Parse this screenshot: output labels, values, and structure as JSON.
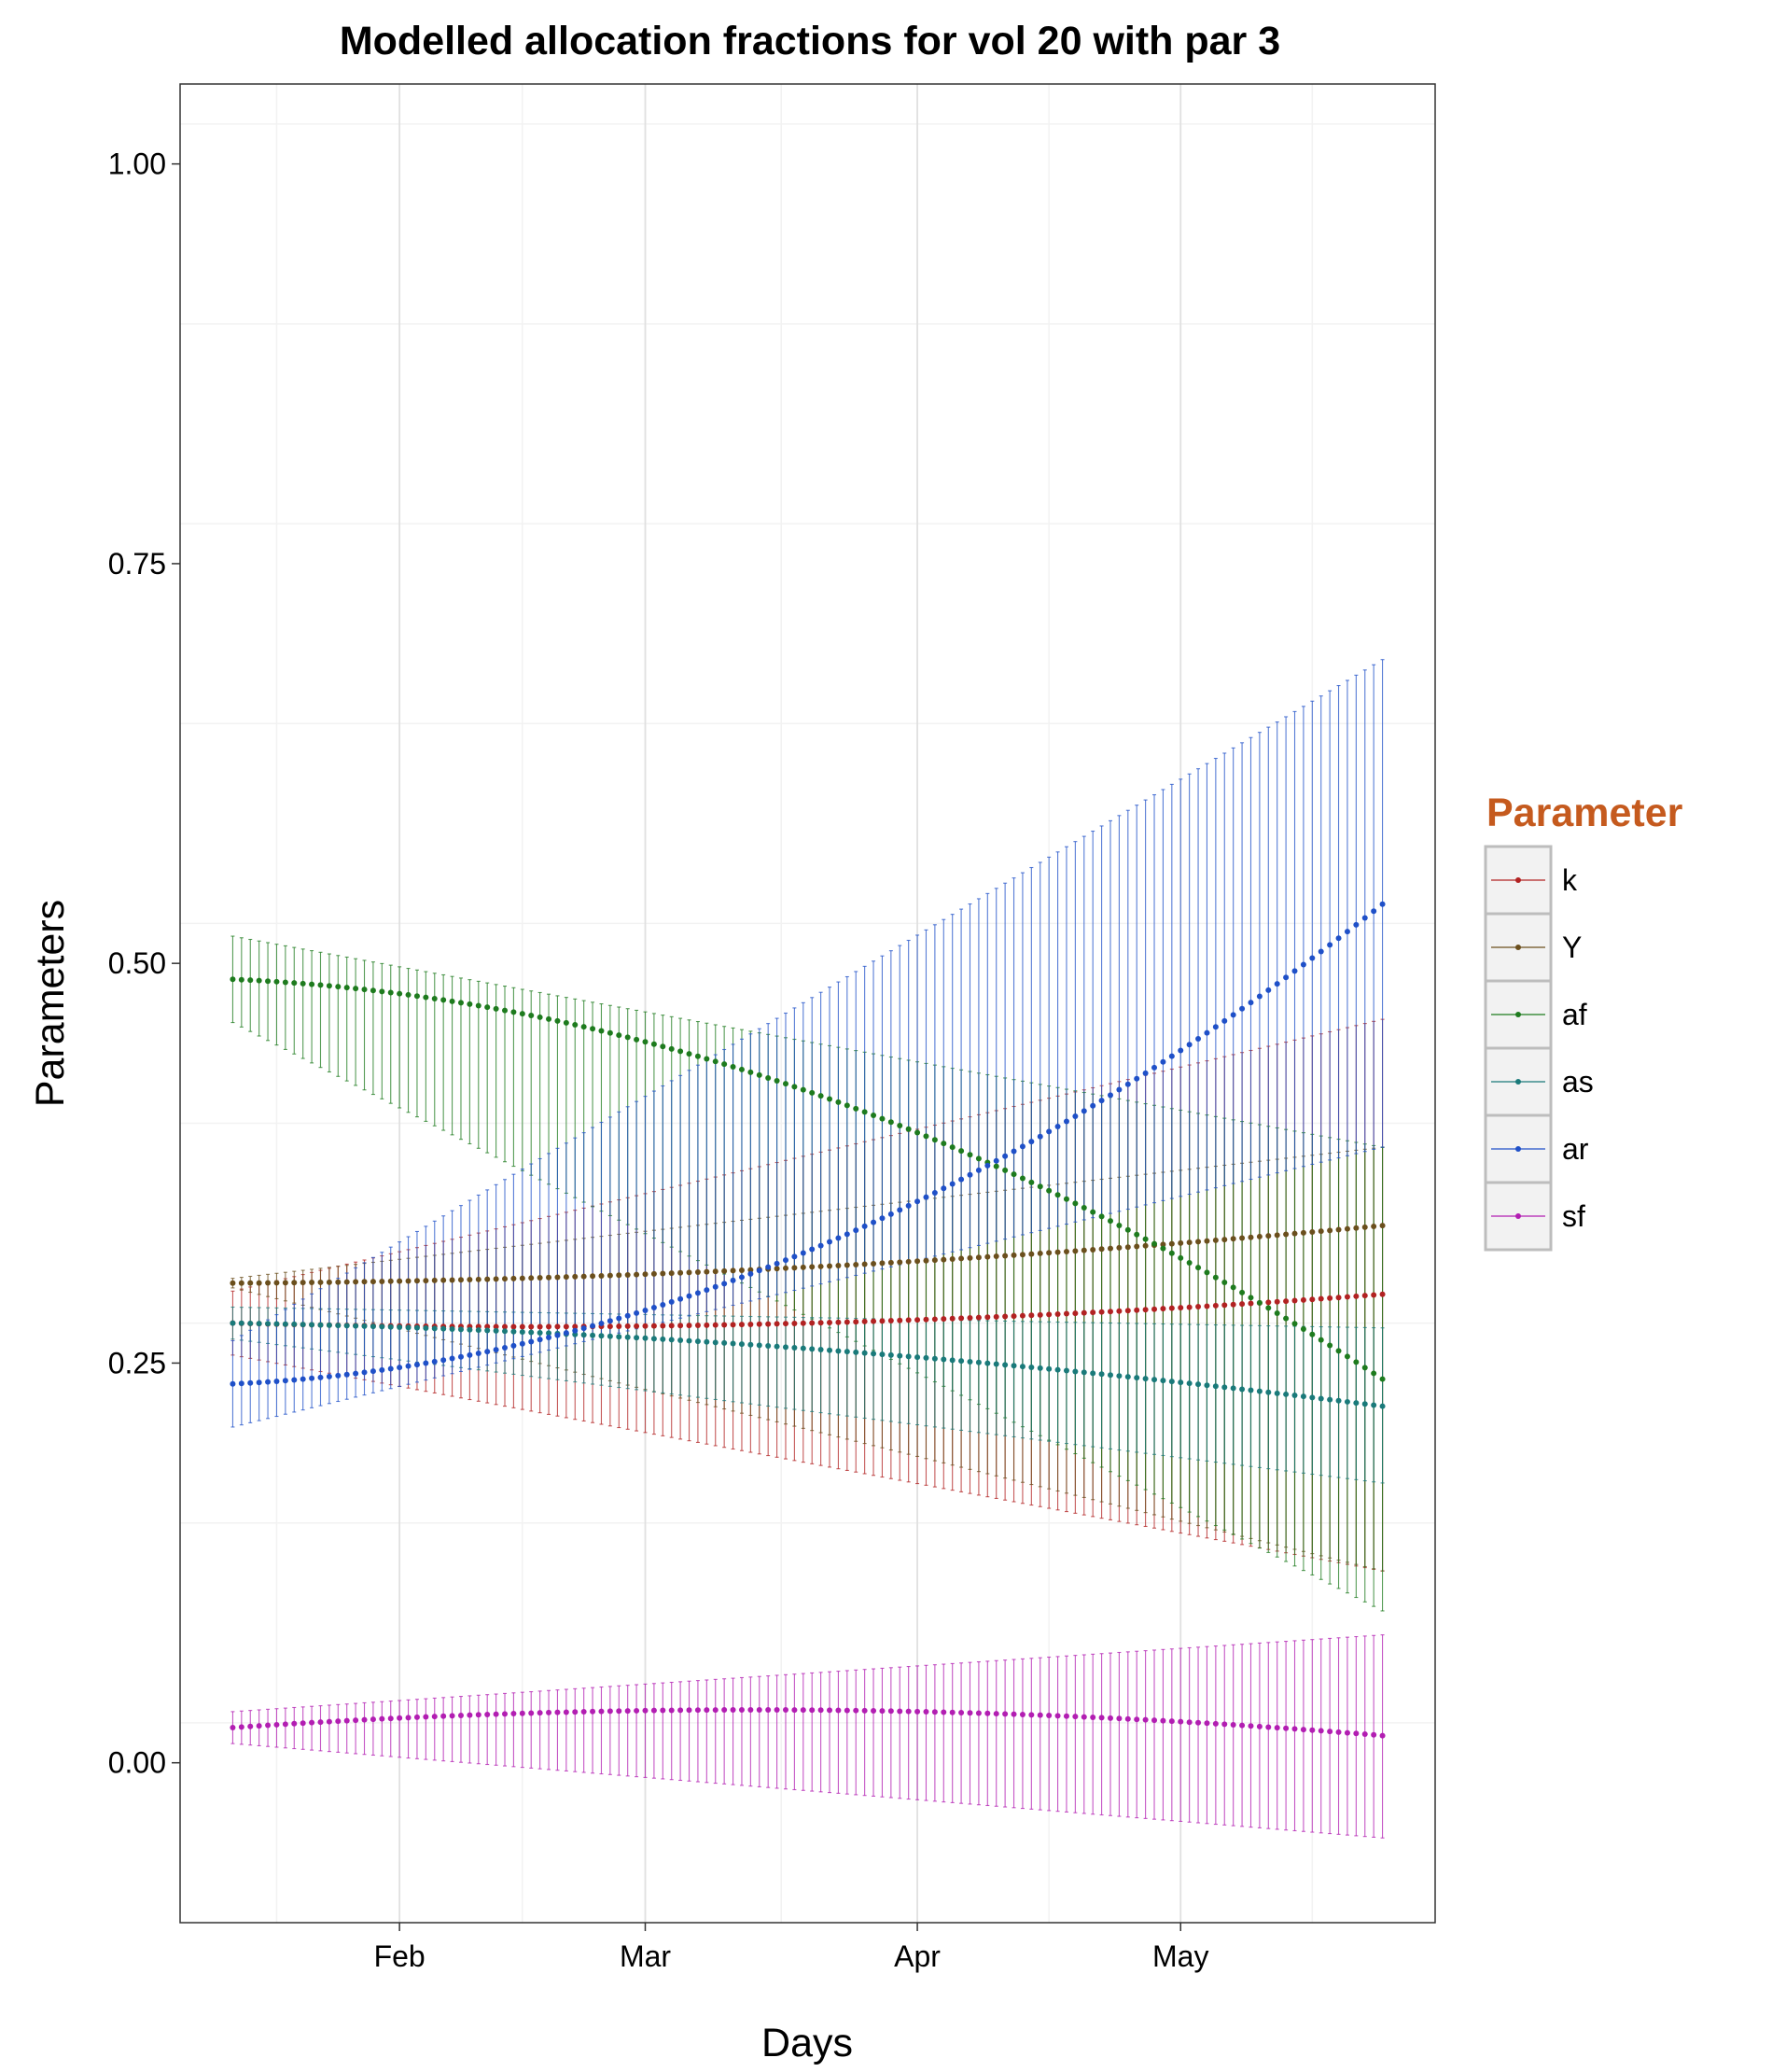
{
  "chart_data": {
    "type": "line",
    "title": "Modelled allocation fractions for vol 20 with par 3",
    "xlabel": "Days",
    "ylabel": "Parameters",
    "x_range": [
      "2015-01-13",
      "2015-05-24"
    ],
    "xlim": [
      "2015-01-07",
      "2015-05-30"
    ],
    "ylim": [
      -0.1,
      1.05
    ],
    "x_ticks": [
      {
        "date": "2015-02-01",
        "label": "Feb"
      },
      {
        "date": "2015-03-01",
        "label": "Mar"
      },
      {
        "date": "2015-04-01",
        "label": "Apr"
      },
      {
        "date": "2015-05-01",
        "label": "May"
      }
    ],
    "y_ticks": [
      {
        "value": 0.0,
        "label": "0.00"
      },
      {
        "value": 0.25,
        "label": "0.25"
      },
      {
        "value": 0.5,
        "label": "0.50"
      },
      {
        "value": 0.75,
        "label": "0.75"
      },
      {
        "value": 1.0,
        "label": "1.00"
      }
    ],
    "grid": true,
    "legend": {
      "title": "Parameter",
      "title_color": "#C55A1E",
      "placement": "right"
    },
    "series": [
      {
        "name": "k",
        "color": "#B22222",
        "start": 0.275,
        "mid": 0.275,
        "end": 0.293,
        "lo_start": 0.255,
        "lo_end": 0.12,
        "hi_start": 0.295,
        "hi_end": 0.465
      },
      {
        "name": "Y",
        "color": "#6B4F1D",
        "start": 0.3,
        "mid": 0.31,
        "end": 0.336,
        "lo_start": 0.297,
        "lo_end": 0.12,
        "hi_start": 0.303,
        "hi_end": 0.385
      },
      {
        "name": "af",
        "color": "#1E7B1E",
        "start": 0.49,
        "mid": 0.42,
        "end": 0.24,
        "lo_start": 0.463,
        "lo_end": 0.095,
        "hi_start": 0.517,
        "hi_end": 0.385
      },
      {
        "name": "as",
        "color": "#1A7A7A",
        "start": 0.275,
        "mid": 0.259,
        "end": 0.223,
        "lo_start": 0.265,
        "lo_end": 0.175,
        "hi_start": 0.285,
        "hi_end": 0.272
      },
      {
        "name": "ar",
        "color": "#1F50C8",
        "start": 0.237,
        "mid": 0.32,
        "end": 0.537,
        "lo_start": 0.21,
        "lo_end": 0.385,
        "hi_start": 0.264,
        "hi_end": 0.69
      },
      {
        "name": "sf",
        "color": "#B21EB2",
        "start": 0.022,
        "mid": 0.033,
        "end": 0.017,
        "lo_start": 0.012,
        "lo_end": -0.047,
        "hi_start": 0.032,
        "hi_end": 0.08
      }
    ]
  }
}
